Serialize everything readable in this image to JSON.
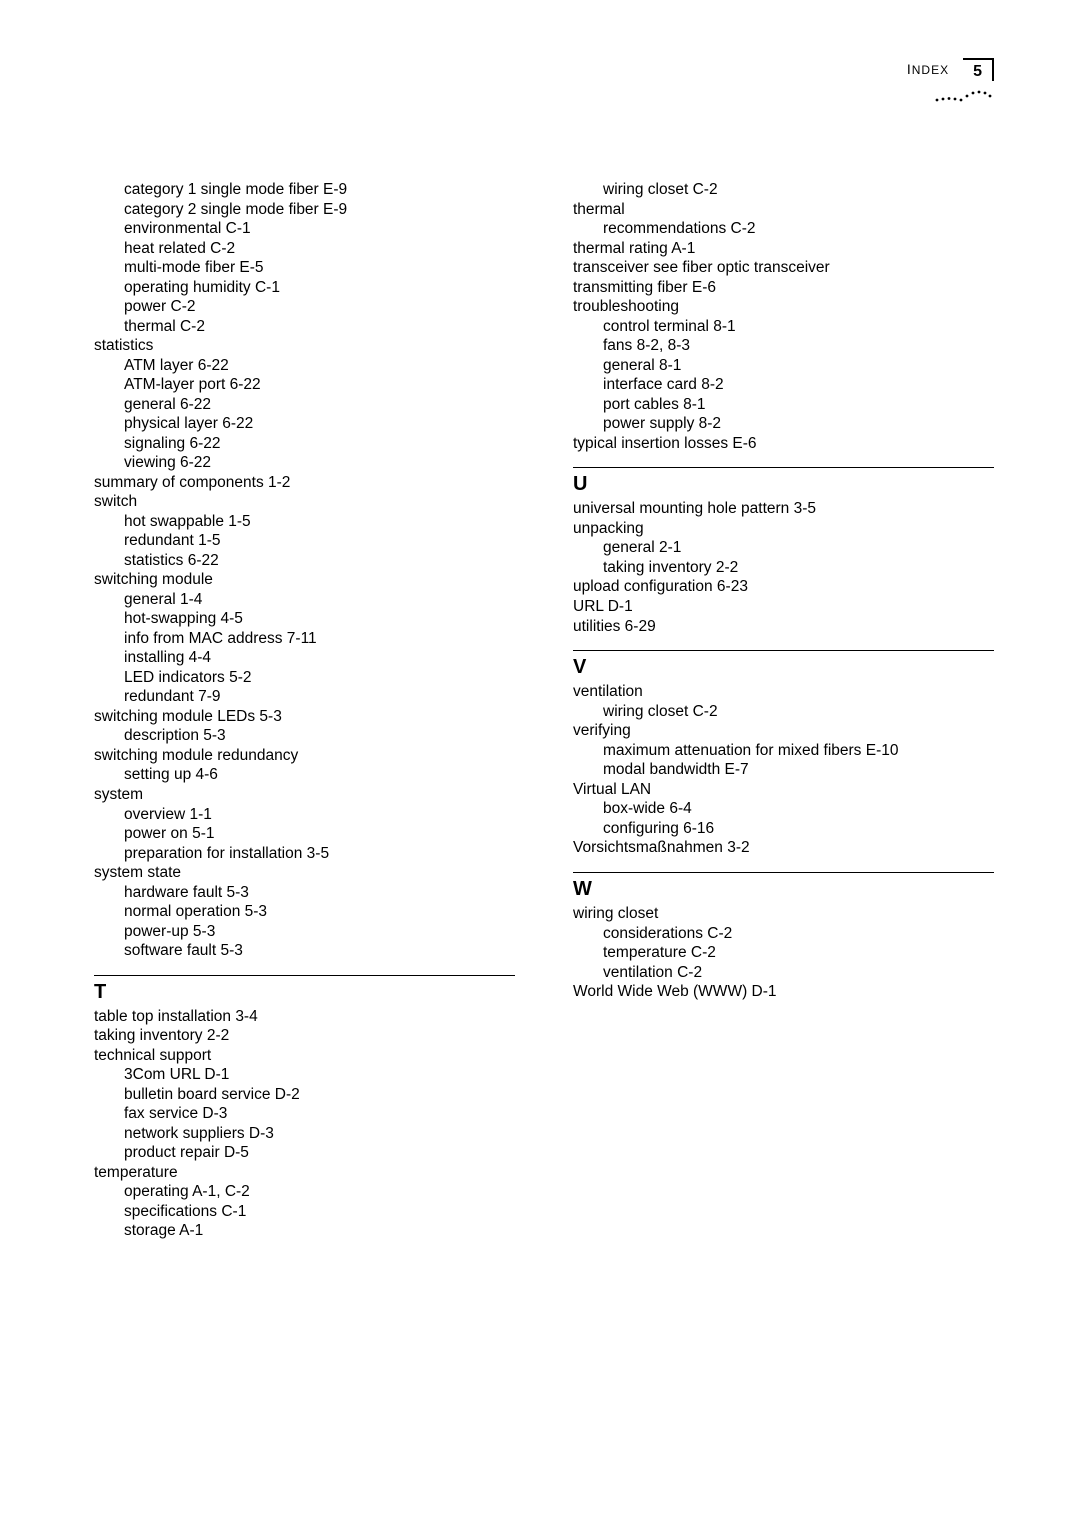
{
  "header": {
    "label": "Index",
    "page": "5"
  },
  "left": [
    {
      "t": "category 1 single mode fiber   E-9",
      "i": 1
    },
    {
      "t": "category 2 single mode fiber   E-9",
      "i": 1
    },
    {
      "t": "environmental   C-1",
      "i": 1
    },
    {
      "t": "heat related   C-2",
      "i": 1
    },
    {
      "t": "multi-mode fiber   E-5",
      "i": 1
    },
    {
      "t": "operating humidity   C-1",
      "i": 1
    },
    {
      "t": "power   C-2",
      "i": 1
    },
    {
      "t": "thermal   C-2",
      "i": 1
    },
    {
      "t": "statistics",
      "i": 0
    },
    {
      "t": "ATM layer   6-22",
      "i": 1
    },
    {
      "t": "ATM-layer port   6-22",
      "i": 1
    },
    {
      "t": "general   6-22",
      "i": 1
    },
    {
      "t": "physical layer   6-22",
      "i": 1
    },
    {
      "t": "signaling   6-22",
      "i": 1
    },
    {
      "t": "viewing   6-22",
      "i": 1
    },
    {
      "t": "summary of components   1-2",
      "i": 0
    },
    {
      "t": "switch",
      "i": 0
    },
    {
      "t": "hot swappable   1-5",
      "i": 1
    },
    {
      "t": "redundant   1-5",
      "i": 1
    },
    {
      "t": "statistics   6-22",
      "i": 1
    },
    {
      "t": "switching module",
      "i": 0
    },
    {
      "t": "general   1-4",
      "i": 1
    },
    {
      "t": "hot-swapping   4-5",
      "i": 1
    },
    {
      "t": "info from MAC address   7-11",
      "i": 1
    },
    {
      "t": "installing   4-4",
      "i": 1
    },
    {
      "t": "LED indicators   5-2",
      "i": 1
    },
    {
      "t": "redundant   7-9",
      "i": 1
    },
    {
      "t": "switching module LEDs   5-3",
      "i": 0
    },
    {
      "t": "description   5-3",
      "i": 1
    },
    {
      "t": "switching module redundancy",
      "i": 0
    },
    {
      "t": "setting up   4-6",
      "i": 1
    },
    {
      "t": "system",
      "i": 0
    },
    {
      "t": "overview   1-1",
      "i": 1
    },
    {
      "t": "power on   5-1",
      "i": 1
    },
    {
      "t": "preparation for installation   3-5",
      "i": 1
    },
    {
      "t": "system state",
      "i": 0
    },
    {
      "t": "hardware fault   5-3",
      "i": 1
    },
    {
      "t": "normal operation   5-3",
      "i": 1
    },
    {
      "t": "power-up   5-3",
      "i": 1
    },
    {
      "t": "software fault   5-3",
      "i": 1
    }
  ],
  "left_T_head": "T",
  "left_T": [
    {
      "t": "table top installation   3-4",
      "i": 0
    },
    {
      "t": "taking inventory   2-2",
      "i": 0
    },
    {
      "t": "technical support",
      "i": 0
    },
    {
      "t": "3Com URL   D-1",
      "i": 1
    },
    {
      "t": "bulletin board service   D-2",
      "i": 1
    },
    {
      "t": "fax service   D-3",
      "i": 1
    },
    {
      "t": "network suppliers   D-3",
      "i": 1
    },
    {
      "t": "product repair   D-5",
      "i": 1
    },
    {
      "t": "temperature",
      "i": 0
    },
    {
      "t": "operating   A-1, C-2",
      "i": 1
    },
    {
      "t": "specifications   C-1",
      "i": 1
    },
    {
      "t": "storage   A-1",
      "i": 1
    }
  ],
  "right_pre": [
    {
      "t": "wiring closet   C-2",
      "i": 1
    },
    {
      "t": "thermal",
      "i": 0
    },
    {
      "t": "recommendations   C-2",
      "i": 1
    },
    {
      "t": "thermal rating   A-1",
      "i": 0
    },
    {
      "t": "transceiver see fiber optic transceiver",
      "i": 0
    },
    {
      "t": "transmitting fiber   E-6",
      "i": 0
    },
    {
      "t": "troubleshooting",
      "i": 0
    },
    {
      "t": "control terminal   8-1",
      "i": 1
    },
    {
      "t": "fans   8-2, 8-3",
      "i": 1
    },
    {
      "t": "general   8-1",
      "i": 1
    },
    {
      "t": "interface card   8-2",
      "i": 1
    },
    {
      "t": "port cables   8-1",
      "i": 1
    },
    {
      "t": "power supply   8-2",
      "i": 1
    },
    {
      "t": "typical insertion losses   E-6",
      "i": 0
    }
  ],
  "U_head": "U",
  "U": [
    {
      "t": "universal mounting hole pattern   3-5",
      "i": 0
    },
    {
      "t": "unpacking",
      "i": 0
    },
    {
      "t": "general   2-1",
      "i": 1
    },
    {
      "t": "taking inventory   2-2",
      "i": 1
    },
    {
      "t": "upload configuration   6-23",
      "i": 0
    },
    {
      "t": "URL   D-1",
      "i": 0
    },
    {
      "t": "utilities   6-29",
      "i": 0
    }
  ],
  "V_head": "V",
  "V": [
    {
      "t": "ventilation",
      "i": 0
    },
    {
      "t": "wiring closet   C-2",
      "i": 1
    },
    {
      "t": "verifying",
      "i": 0
    },
    {
      "t": "maximum attenuation for mixed fibers   E-10",
      "i": 1
    },
    {
      "t": "modal bandwidth   E-7",
      "i": 1
    },
    {
      "t": "Virtual LAN",
      "i": 0
    },
    {
      "t": "box-wide   6-4",
      "i": 1
    },
    {
      "t": "configuring   6-16",
      "i": 1
    },
    {
      "t": "Vorsichtsmaßnahmen   3-2",
      "i": 0
    }
  ],
  "W_head": "W",
  "W": [
    {
      "t": "wiring closet",
      "i": 0
    },
    {
      "t": "considerations   C-2",
      "i": 1
    },
    {
      "t": "temperature   C-2",
      "i": 1
    },
    {
      "t": "ventilation   C-2",
      "i": 1
    },
    {
      "t": "World Wide Web (WWW)   D-1",
      "i": 0
    }
  ]
}
